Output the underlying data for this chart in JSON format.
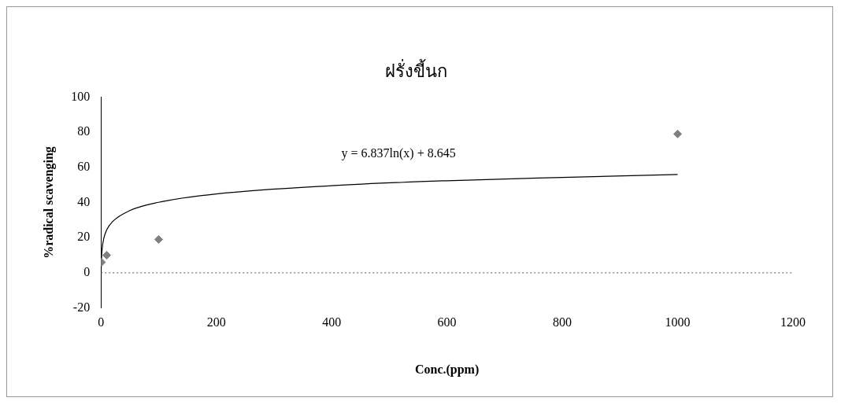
{
  "chart_data": {
    "type": "scatter",
    "title": "ฝรั่งขี้นก",
    "xlabel": "Conc.(ppm)",
    "ylabel": "%radical scavenging",
    "xlim": [
      0,
      1200
    ],
    "xticks": [
      0,
      200,
      400,
      600,
      800,
      1000,
      1200
    ],
    "ylim": [
      -20,
      100
    ],
    "yticks": [
      -20,
      0,
      20,
      40,
      60,
      80,
      100
    ],
    "grid": false,
    "legend": false,
    "marker": "diamond",
    "series": [
      {
        "color": "#808080",
        "x": [
          1,
          10,
          100,
          1000
        ],
        "values": [
          6,
          10,
          19,
          79
        ]
      },
      {
        "type": "line",
        "color": "#000000",
        "marker": "none",
        "line_style": "solid",
        "x": [
          0.1,
          0.5,
          1,
          2,
          5,
          10,
          20,
          50,
          100,
          200,
          400,
          600,
          800,
          1000
        ],
        "values": [
          -7.1,
          3.9,
          8.6,
          13.4,
          19.7,
          24.4,
          29.1,
          35.4,
          40.1,
          44.9,
          49.6,
          52.4,
          54.3,
          55.9
        ]
      }
    ],
    "ref_lines": [
      {
        "axis": "y",
        "value": 0,
        "color": "#555555",
        "line_style": "dotted"
      }
    ],
    "annotations": [
      "y = 6.837ln(x) + 8.645"
    ]
  }
}
